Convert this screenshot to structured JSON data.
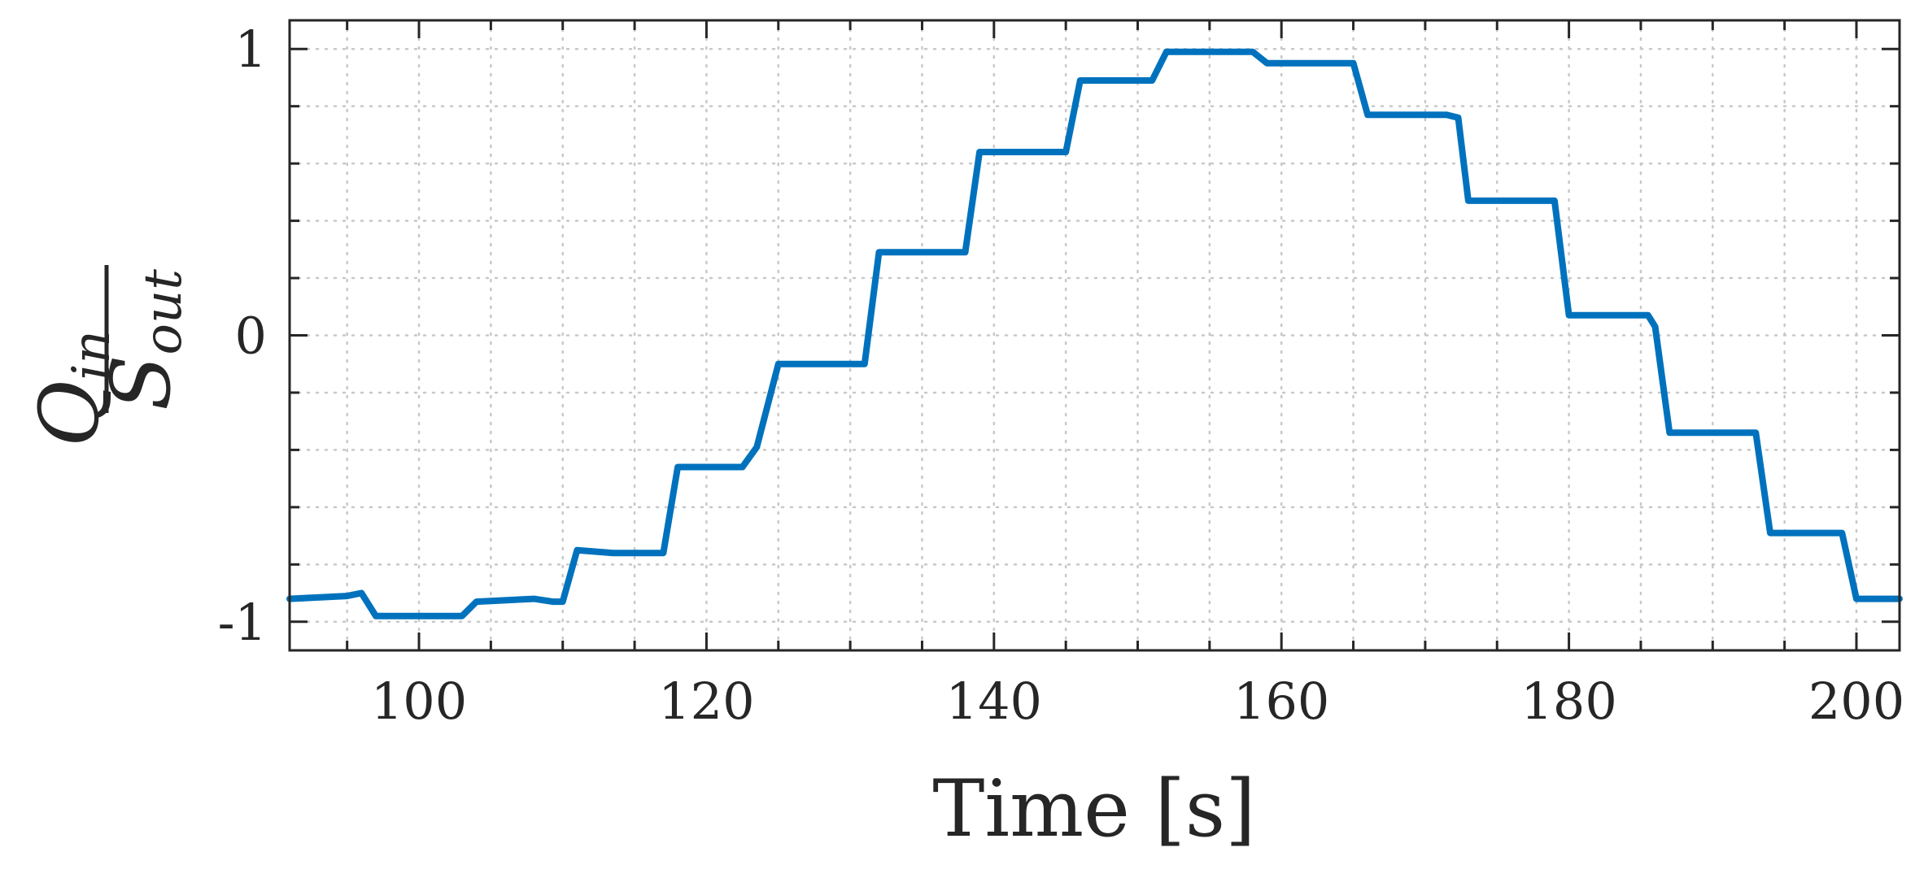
{
  "chart_data": {
    "type": "line",
    "title": "",
    "xlabel": "Time [s]",
    "ylabel": {
      "numerator": "Q",
      "numerator_sub": "in",
      "denominator": "S",
      "denominator_sub": "out"
    },
    "xlim": [
      91,
      203
    ],
    "ylim": [
      -1.1,
      1.1
    ],
    "xticks": [
      100,
      120,
      140,
      160,
      180,
      200
    ],
    "xtick_labels": [
      "100",
      "120",
      "140",
      "160",
      "180",
      "200"
    ],
    "yticks": [
      -1,
      0,
      1
    ],
    "ytick_labels": [
      "-1",
      "0",
      "1"
    ],
    "grid": true,
    "line_color": "#0072BD",
    "grid_color": "#c8c8c8",
    "axis_color": "#262626",
    "series": [
      {
        "x": [
          91,
          95,
          96,
          97,
          100,
          103,
          104,
          108,
          109.3,
          110,
          111,
          113.5,
          117,
          118,
          122.5,
          123.5,
          125,
          130,
          131,
          132,
          138,
          139,
          145,
          146,
          150,
          151,
          152,
          155,
          158,
          159,
          165,
          166,
          171.5,
          172.3,
          173,
          179,
          180,
          185.5,
          186,
          187,
          193,
          194,
          199,
          200,
          203
        ],
        "y": [
          -0.92,
          -0.91,
          -0.9,
          -0.98,
          -0.98,
          -0.98,
          -0.93,
          -0.92,
          -0.93,
          -0.93,
          -0.75,
          -0.76,
          -0.76,
          -0.46,
          -0.46,
          -0.39,
          -0.1,
          -0.1,
          -0.1,
          0.29,
          0.29,
          0.64,
          0.64,
          0.89,
          0.89,
          0.89,
          0.99,
          0.99,
          0.99,
          0.95,
          0.95,
          0.77,
          0.77,
          0.76,
          0.47,
          0.47,
          0.07,
          0.07,
          0.03,
          -0.34,
          -0.34,
          -0.69,
          -0.69,
          -0.92,
          -0.92
        ]
      }
    ]
  }
}
